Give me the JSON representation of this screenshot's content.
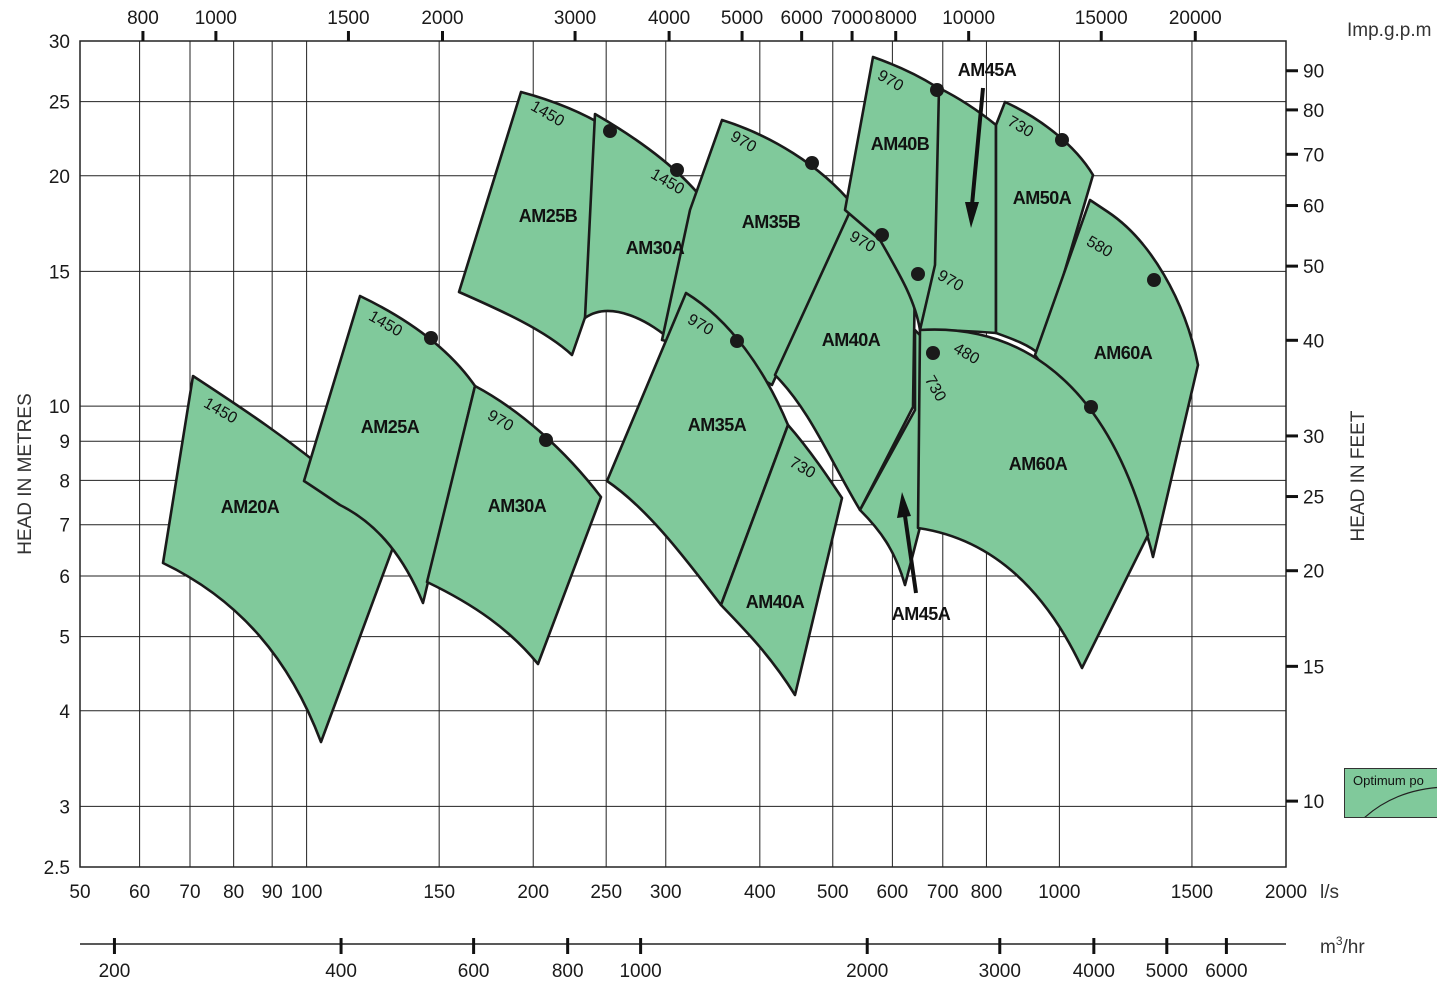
{
  "chart_data": {
    "type": "area",
    "title": "",
    "y_left": {
      "label": "HEAD IN METRES",
      "scale": "log",
      "range": [
        2.5,
        30
      ],
      "ticks": [
        30,
        25,
        20,
        15,
        10,
        9,
        8,
        7,
        6,
        5,
        4,
        3,
        2.5
      ]
    },
    "y_right": {
      "label": "HEAD IN FEET",
      "scale": "log",
      "ticks": [
        90,
        80,
        70,
        60,
        50,
        40,
        30,
        25,
        20,
        15,
        10
      ]
    },
    "x_bottom_ls": {
      "unit": "l/s",
      "scale": "log",
      "range": [
        50,
        2000
      ],
      "ticks": [
        50,
        60,
        70,
        80,
        90,
        100,
        150,
        200,
        250,
        300,
        400,
        500,
        600,
        700,
        800,
        1000,
        1500,
        2000
      ]
    },
    "x_bottom_m3hr": {
      "unit": "m³/hr",
      "scale": "log",
      "ticks": [
        200,
        400,
        600,
        800,
        1000,
        2000,
        3000,
        4000,
        5000,
        6000
      ]
    },
    "x_top_gpm": {
      "unit": "Imp.g.p.m",
      "scale": "log",
      "ticks": [
        800,
        1000,
        1500,
        2000,
        3000,
        4000,
        5000,
        6000,
        7000,
        8000,
        10000,
        15000,
        20000
      ]
    },
    "pump_zones": [
      {
        "name": "AM20A",
        "speed": "1450",
        "flow_ls": [
          66,
          168
        ],
        "head_m": [
          3.6,
          11
        ]
      },
      {
        "name": "AM25A",
        "speed": "1450",
        "flow_ls": [
          114,
          170
        ],
        "head_m": [
          5.5,
          13.5
        ]
      },
      {
        "name": "AM30A",
        "speed": "970",
        "flow_ls": [
          148,
          243
        ],
        "head_m": [
          4.5,
          10
        ]
      },
      {
        "name": "AM25B",
        "speed": "1450",
        "flow_ls": [
          165,
          255
        ],
        "head_m": [
          12,
          26
        ]
      },
      {
        "name": "AM30A",
        "speed": "1450",
        "flow_ls": [
          230,
          360
        ],
        "head_m": [
          10.5,
          23
        ]
      },
      {
        "name": "AM35B",
        "speed": "970",
        "flow_ls": [
          340,
          560
        ],
        "head_m": [
          11,
          23
        ]
      },
      {
        "name": "AM35A",
        "speed": "970",
        "flow_ls": [
          240,
          420
        ],
        "head_m": [
          5.5,
          14
        ]
      },
      {
        "name": "AM40A",
        "speed": "730",
        "flow_ls": [
          340,
          510
        ],
        "head_m": [
          4.2,
          9
        ]
      },
      {
        "name": "AM40A",
        "speed": "970",
        "flow_ls": [
          400,
          650
        ],
        "head_m": [
          8,
          18.5
        ]
      },
      {
        "name": "AM40B",
        "speed": "970",
        "flow_ls": [
          540,
          780
        ],
        "head_m": [
          14,
          27
        ]
      },
      {
        "name": "AM45A",
        "speed": "970",
        "flow_ls": [
          640,
          870
        ],
        "head_m": [
          12,
          26
        ]
      },
      {
        "name": "AM45A",
        "speed": "730",
        "flow_ls": [
          560,
          760
        ],
        "head_m": [
          6,
          12.5
        ]
      },
      {
        "name": "AM50A",
        "speed": "730",
        "flow_ls": [
          780,
          1100
        ],
        "head_m": [
          12,
          24
        ]
      },
      {
        "name": "AM60A",
        "speed": "580",
        "flow_ls": [
          880,
          1550
        ],
        "head_m": [
          6,
          18
        ]
      },
      {
        "name": "AM60A",
        "speed": "480",
        "flow_ls": [
          650,
          1450
        ],
        "head_m": [
          4.4,
          12.5
        ]
      }
    ],
    "optimum_points": [
      {
        "zone": "AM25B",
        "flow_ls": 248,
        "head_m": 23
      },
      {
        "zone": "AM30A (1450)",
        "flow_ls": 310,
        "head_m": 20.5
      },
      {
        "zone": "AM35B",
        "flow_ls": 465,
        "head_m": 21
      },
      {
        "zone": "AM25A",
        "flow_ls": 147,
        "head_m": 12.5
      },
      {
        "zone": "AM30A (970)",
        "flow_ls": 205,
        "head_m": 9
      },
      {
        "zone": "AM35A",
        "flow_ls": 372,
        "head_m": 12
      },
      {
        "zone": "AM40A",
        "flow_ls": 565,
        "head_m": 16.5
      },
      {
        "zone": "AM40B",
        "flow_ls": 680,
        "head_m": 26
      },
      {
        "zone": "AM45A (970)",
        "flow_ls": 640,
        "head_m": 15
      },
      {
        "zone": "AM45A (730)",
        "flow_ls": 680,
        "head_m": 11.5
      },
      {
        "zone": "AM50A",
        "flow_ls": 1010,
        "head_m": 22.5
      },
      {
        "zone": "AM60A (580)",
        "flow_ls": 1380,
        "head_m": 14.5
      },
      {
        "zone": "AM60A (480)",
        "flow_ls": 1100,
        "head_m": 10
      }
    ],
    "annotations": [
      "AM45A",
      "AM45A"
    ],
    "legend": {
      "text": "Optimum po"
    },
    "grid": true
  },
  "labels": {
    "ylabel_left": "HEAD IN METRES",
    "ylabel_right": "HEAD IN FEET",
    "unit_ls": "l/s",
    "unit_m3hr_main": "m",
    "unit_m3hr_sup": "3",
    "unit_m3hr_tail": "/hr",
    "unit_gpm": "Imp.g.p.m",
    "legend_text": "Optimum po",
    "arrow_label_top": "AM45A",
    "arrow_label_bottom": "AM45A"
  },
  "colors": {
    "zone_fill": "#80c99b",
    "outline": "#1a1a1a",
    "grid": "#222222"
  }
}
